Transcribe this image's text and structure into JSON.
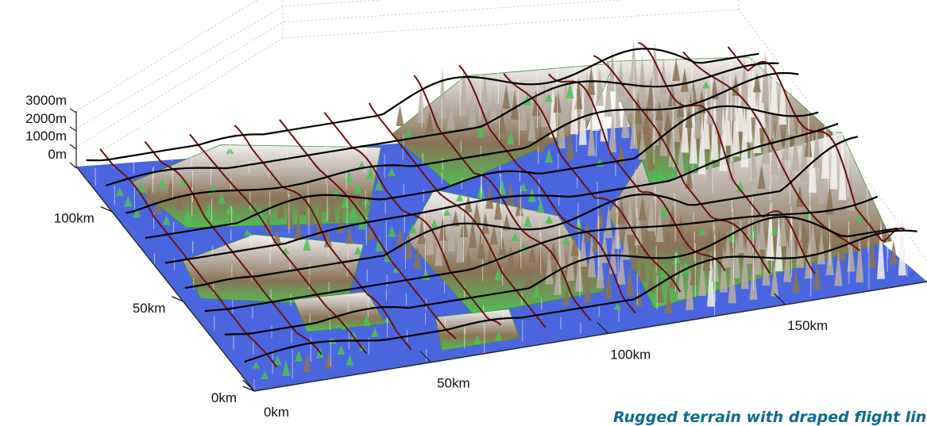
{
  "chart_data": {
    "type": "surface3d",
    "title": "",
    "caption": "Rugged terrain with draped flight line",
    "x_axis": {
      "label": "",
      "ticks": [
        "0km",
        "50km",
        "100km",
        "150km"
      ],
      "range_km": [
        0,
        190
      ]
    },
    "y_axis": {
      "label": "",
      "ticks": [
        "0km",
        "50km",
        "100km"
      ],
      "range_km": [
        0,
        125
      ]
    },
    "z_axis": {
      "label": "",
      "ticks": [
        "0m",
        "1000m",
        "2000m",
        "3000m"
      ],
      "range_m": [
        0,
        3000
      ]
    },
    "grid": true,
    "surface": {
      "description_colors": {
        "water": "#4a66df",
        "lowland": "#4fbf57",
        "midland": "#8a7355",
        "highland": "#d9d6d8",
        "peak": "#f4f2f0"
      }
    },
    "flight_lines": {
      "along_x_color": "#000000",
      "along_y_color": "#6a1010",
      "along_x_count": 9,
      "along_y_count": 15,
      "sample_stem_color": "#ffffff"
    }
  }
}
